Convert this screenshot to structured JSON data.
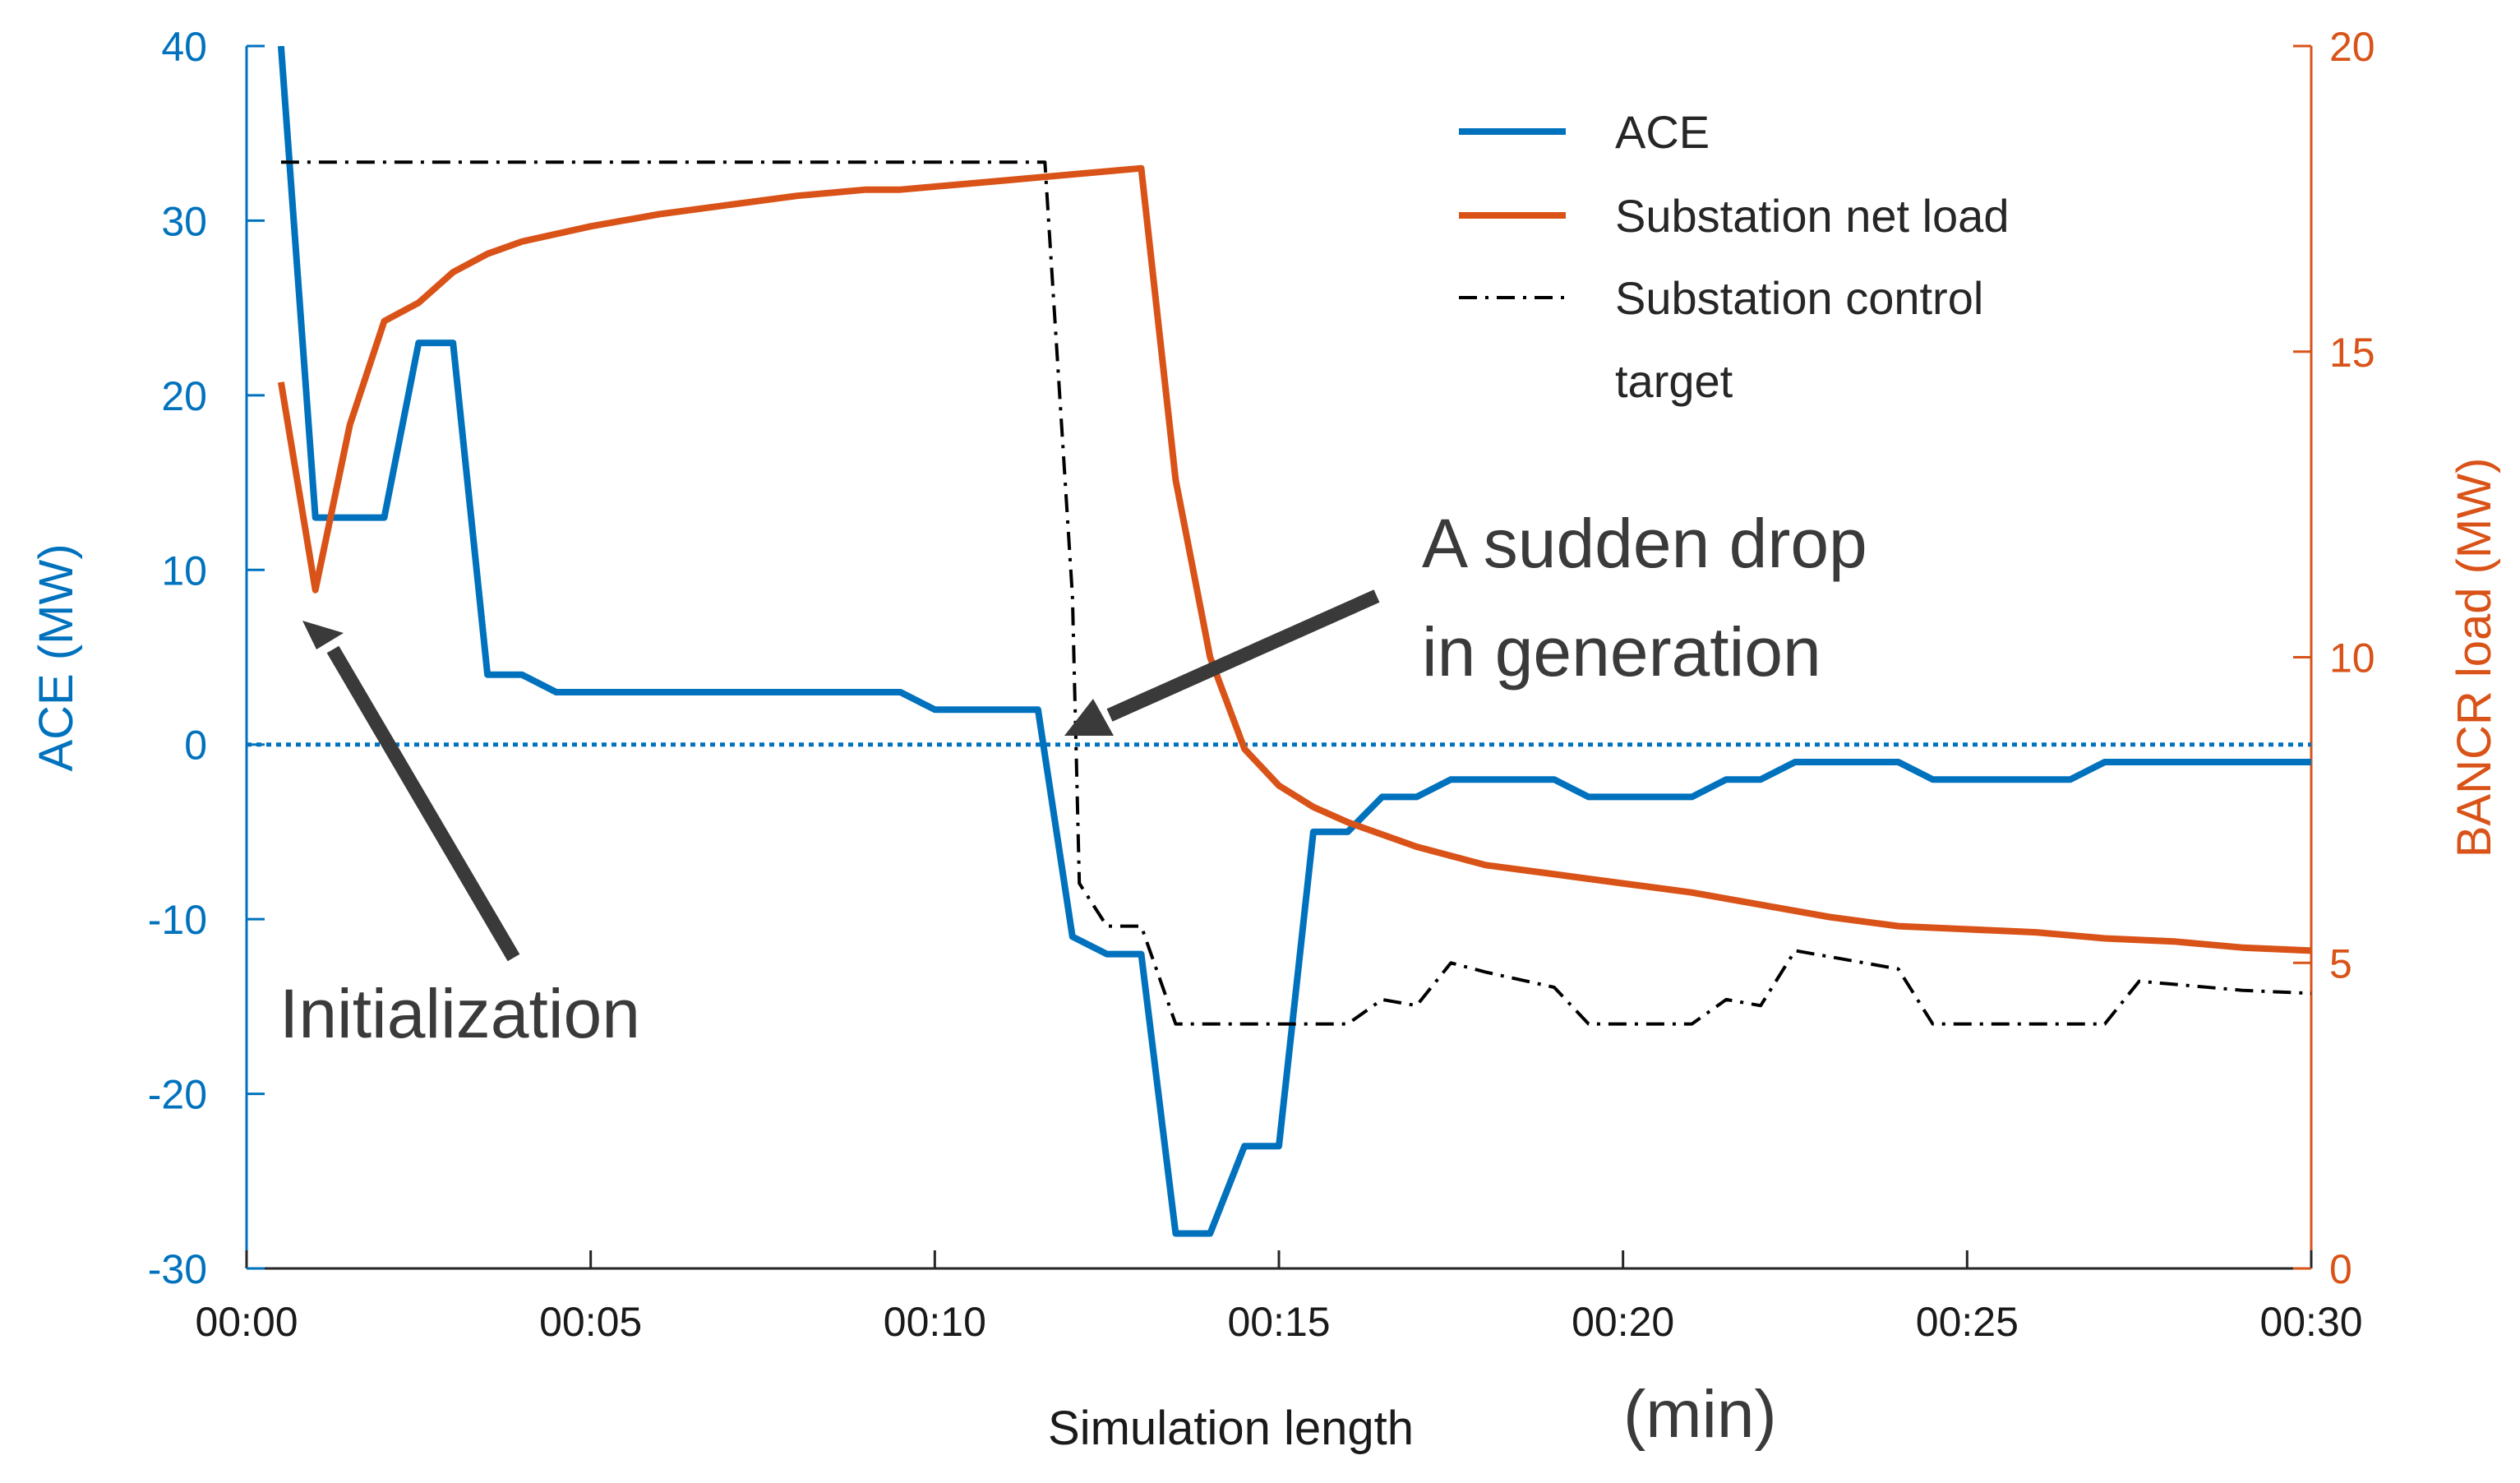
{
  "chart_data": {
    "type": "line",
    "xlabel": "Simulation length",
    "xlabel_unit": "(min)",
    "ylabel_left": "ACE (MW)",
    "ylabel_right": "BANCR load (MW)",
    "x_range": [
      0,
      30
    ],
    "y_left_range": [
      -30,
      40
    ],
    "y_right_range": [
      0,
      20
    ],
    "x_ticks": [
      0,
      5,
      10,
      15,
      20,
      25,
      30
    ],
    "x_tick_labels": [
      "00:00",
      "00:05",
      "00:10",
      "00:15",
      "00:20",
      "00:25",
      "00:30"
    ],
    "y_left_ticks": [
      40,
      30,
      20,
      10,
      0,
      -10,
      -20,
      -30
    ],
    "y_left_tick_labels": [
      "40",
      "30",
      "20",
      "10",
      "0",
      "-10",
      "-20",
      "-30"
    ],
    "y_right_ticks": [
      20,
      15,
      10,
      5,
      0
    ],
    "y_right_tick_labels": [
      "20",
      "15",
      "10",
      "5",
      "0"
    ],
    "zero_line": {
      "axis": "left",
      "value": 0
    },
    "legend": {
      "position": "top-right",
      "entries": [
        {
          "label": "ACE",
          "series": "ace"
        },
        {
          "label": "Substation net load",
          "series": "net_load"
        },
        {
          "label": "Substation control",
          "label_line2": "target",
          "series": "control_target"
        }
      ]
    },
    "series": [
      {
        "id": "ace",
        "name": "ACE",
        "axis": "left",
        "color": "#0072BD",
        "style": "solid",
        "x": [
          0.5,
          1.0,
          1.5,
          2.0,
          2.5,
          3.0,
          3.5,
          4.0,
          4.5,
          5,
          6,
          7,
          8,
          9,
          9.5,
          10,
          10.5,
          11,
          11.5,
          12,
          12.5,
          13,
          13.5,
          14,
          14.5,
          15,
          15.5,
          16,
          16.5,
          17,
          17.5,
          18,
          18.5,
          19,
          19.5,
          20,
          20.5,
          21,
          21.5,
          22,
          22.5,
          23,
          23.5,
          24,
          24.5,
          25,
          25.5,
          26,
          26.5,
          27,
          27.5,
          28,
          28.5,
          29,
          29.5,
          30
        ],
        "values": [
          40,
          13,
          13,
          13,
          23,
          23,
          4,
          4,
          3,
          3,
          3,
          3,
          3,
          3,
          3,
          2,
          2,
          2,
          2,
          -11,
          -12,
          -12,
          -28,
          -28,
          -23,
          -23,
          -5,
          -5,
          -3,
          -3,
          -2,
          -2,
          -2,
          -2,
          -3,
          -3,
          -3,
          -3,
          -2,
          -2,
          -1,
          -1,
          -1,
          -1,
          -2,
          -2,
          -2,
          -2,
          -2,
          -1,
          -1,
          -1,
          -1,
          -1,
          -1,
          -1
        ]
      },
      {
        "id": "net_load",
        "name": "Substation net load",
        "axis": "right",
        "color": "#D95319",
        "style": "solid",
        "x": [
          0.5,
          1.0,
          1.5,
          2.0,
          2.5,
          3.0,
          3.5,
          4.0,
          5,
          6,
          7,
          8,
          9,
          9.5,
          10,
          11,
          12,
          13.0,
          13.5,
          14.0,
          14.5,
          15.0,
          15.5,
          16,
          16.5,
          17,
          18,
          19,
          20,
          21,
          22,
          23,
          24,
          25,
          26,
          27,
          28,
          29,
          30
        ],
        "values": [
          14.5,
          11.1,
          13.8,
          15.5,
          15.8,
          16.3,
          16.6,
          16.8,
          17.05,
          17.25,
          17.4,
          17.55,
          17.65,
          17.65,
          17.7,
          17.8,
          17.9,
          18.0,
          12.9,
          10.0,
          8.5,
          7.9,
          7.55,
          7.3,
          7.1,
          6.9,
          6.6,
          6.45,
          6.3,
          6.15,
          5.95,
          5.75,
          5.6,
          5.55,
          5.5,
          5.4,
          5.35,
          5.25,
          5.2
        ]
      },
      {
        "id": "control_target",
        "name": "Substation control target",
        "axis": "right",
        "color": "#000000",
        "style": "dashdot",
        "x": [
          0.5,
          1,
          5,
          10,
          11.5,
          11.6,
          12.0,
          12.1,
          12.5,
          13.0,
          13.5,
          14,
          15,
          16,
          16.5,
          17,
          17.5,
          18,
          19,
          19.5,
          20,
          21,
          21.5,
          22,
          22.5,
          23,
          24,
          24.5,
          25,
          26,
          27,
          27.5,
          28,
          29,
          30
        ],
        "values": [
          18.1,
          18.1,
          18.1,
          18.1,
          18.1,
          18.1,
          11.0,
          6.3,
          5.6,
          5.6,
          4.0,
          4.0,
          4.0,
          4.0,
          4.4,
          4.3,
          5.0,
          4.85,
          4.6,
          4.0,
          4.0,
          4.0,
          4.4,
          4.3,
          5.2,
          5.1,
          4.9,
          4.0,
          4.0,
          4.0,
          4.0,
          4.7,
          4.65,
          4.55,
          4.5
        ]
      }
    ],
    "annotations": [
      {
        "text": "Initialization",
        "points_to": {
          "x": 1.0,
          "y_left": 10
        }
      },
      {
        "text_line1": "A sudden drop",
        "text_line2": "in generation",
        "points_to": {
          "x": 12.0,
          "y_left": 0
        }
      }
    ]
  }
}
